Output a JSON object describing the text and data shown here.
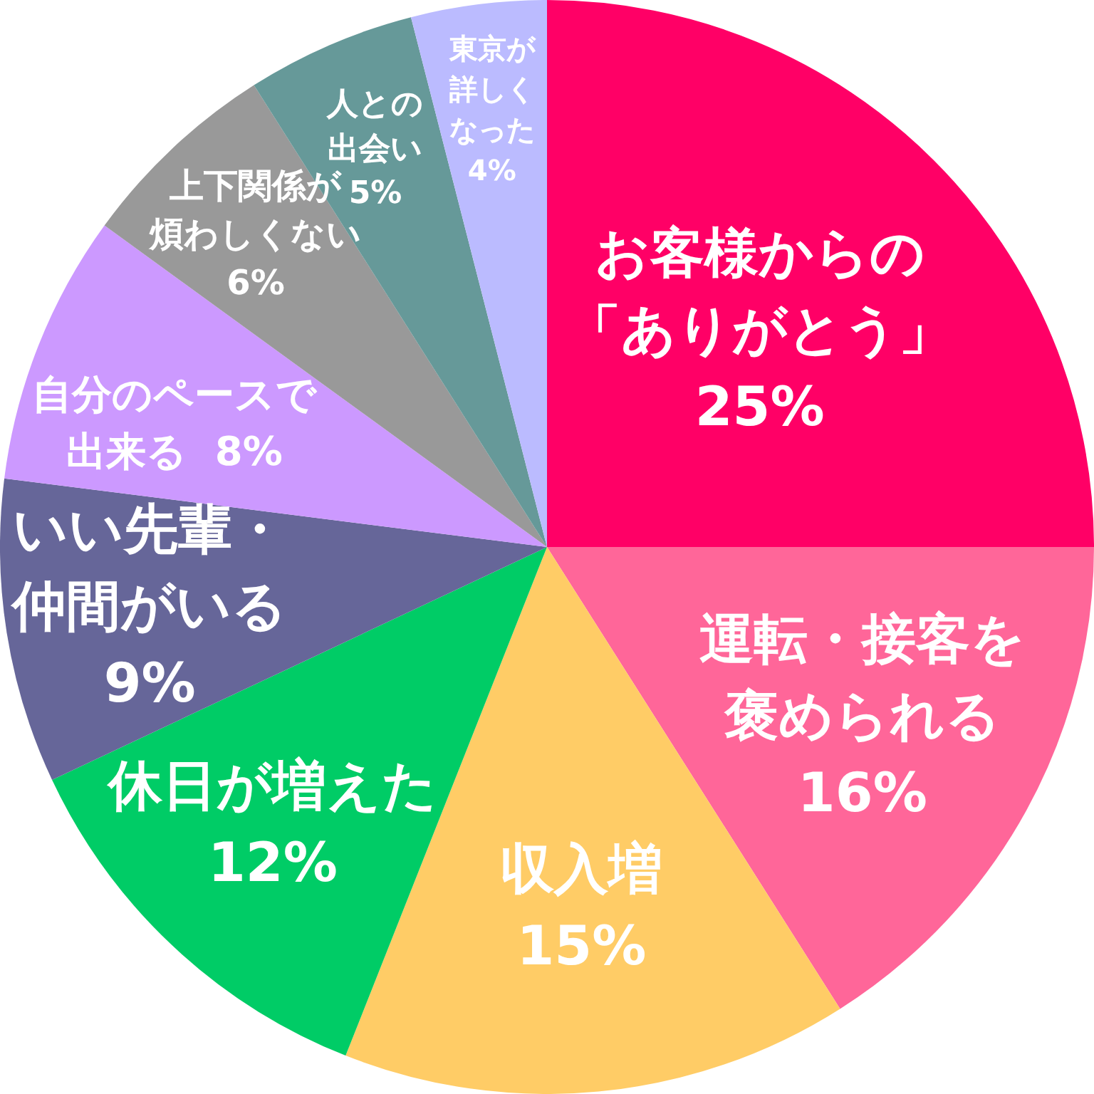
{
  "chart_data": {
    "type": "pie",
    "categories": [
      "お客様からの「ありがとう」",
      "運転・接客を褒められる",
      "収入増",
      "休日が増えた",
      "いい先輩・仲間がいる",
      "自分のペースで出来る",
      "上下関係が煩わしくない",
      "人との出会い",
      "東京が詳しくなった"
    ],
    "values": [
      25,
      16,
      15,
      12,
      9,
      8,
      6,
      5,
      4
    ],
    "colors": [
      "#ff0066",
      "#ff6699",
      "#ffcc66",
      "#00cc66",
      "#666699",
      "#cc99ff",
      "#999999",
      "#669999",
      "#bbbbff"
    ],
    "value_labels": [
      "25%",
      "16%",
      "15%",
      "12%",
      "9%",
      "8%",
      "6%",
      "5%",
      "4%"
    ],
    "legend": false
  }
}
